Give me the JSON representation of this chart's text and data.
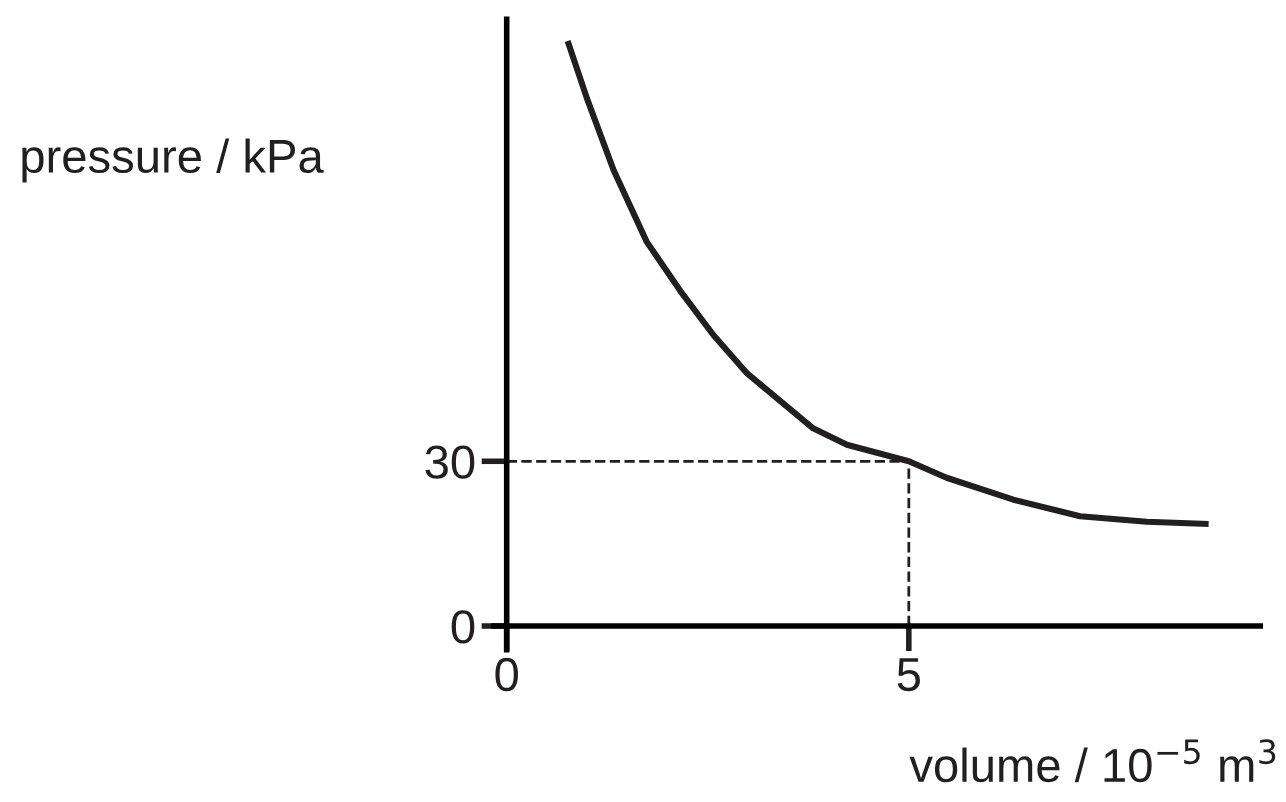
{
  "chart_data": {
    "type": "line",
    "xlabel": "volume / 10$^{−5}$ m$^{3}$",
    "ylabel": "pressure / kPa",
    "x": [
      0.77,
      1.0,
      1.33,
      1.74,
      2.16,
      2.57,
      2.99,
      3.4,
      3.81,
      4.23,
      5,
      5.47,
      6.3,
      7.13,
      7.96,
      8.69
    ],
    "series": [
      {
        "color": "#231f20",
        "values": [
          106,
          96,
          83,
          70,
          61,
          53,
          46,
          41,
          36,
          33,
          30,
          27,
          23,
          20,
          19,
          18.6
        ]
      }
    ],
    "xlim": [
      -0.16,
      9.37
    ],
    "ylim": [
      -4.3,
      110.5
    ],
    "xticks": [
      0,
      5
    ],
    "yticks": [
      0,
      30
    ],
    "ref_lines": [
      {
        "axis": "y",
        "value": 30,
        "line_style": "dashed"
      },
      {
        "axis": "x",
        "value": 5,
        "line_style": "dashed"
      }
    ],
    "grid": false,
    "legend": false,
    "marker": "none",
    "line_style": "solid"
  }
}
